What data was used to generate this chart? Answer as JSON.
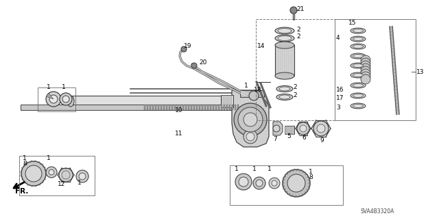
{
  "background_color": "#ffffff",
  "watermark": "SVA4B3320A",
  "line_color": "#404040",
  "label_fs": 6.5,
  "small_fs": 5.5
}
